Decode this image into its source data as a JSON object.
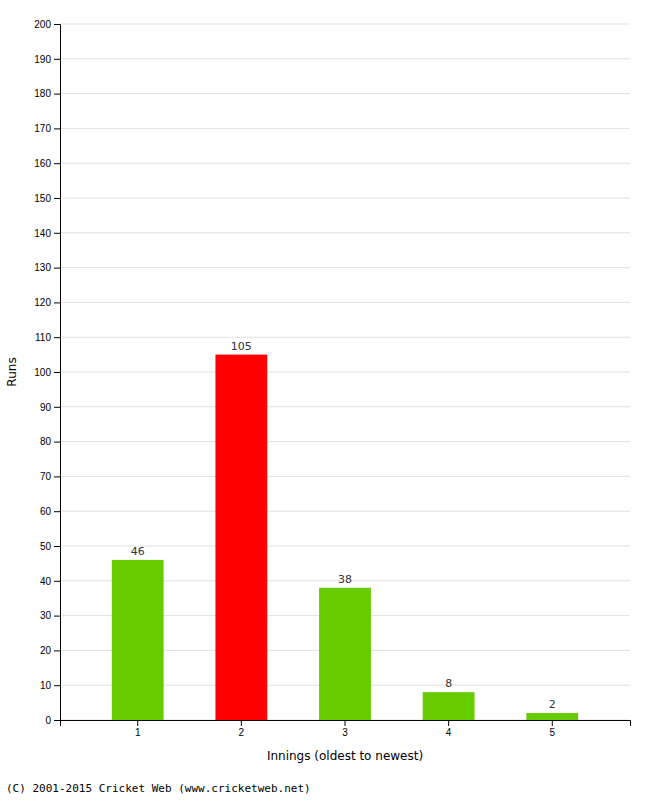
{
  "chart_data": {
    "type": "bar",
    "categories": [
      1,
      2,
      3,
      4,
      5
    ],
    "values": [
      46,
      105,
      38,
      8,
      2
    ],
    "colors": [
      "#66cc00",
      "#ff0000",
      "#66cc00",
      "#66cc00",
      "#66cc00"
    ],
    "xlabel": "Innings (oldest to newest)",
    "ylabel": "Runs",
    "ylim": [
      0,
      200
    ],
    "yticks": [
      0,
      10,
      20,
      30,
      40,
      50,
      60,
      70,
      80,
      90,
      100,
      110,
      120,
      130,
      140,
      150,
      160,
      170,
      180,
      190,
      200
    ],
    "grid": true,
    "data_labels": true,
    "annotations": [
      "(C) 2001-2015 Cricket Web (www.cricketweb.net)"
    ]
  }
}
